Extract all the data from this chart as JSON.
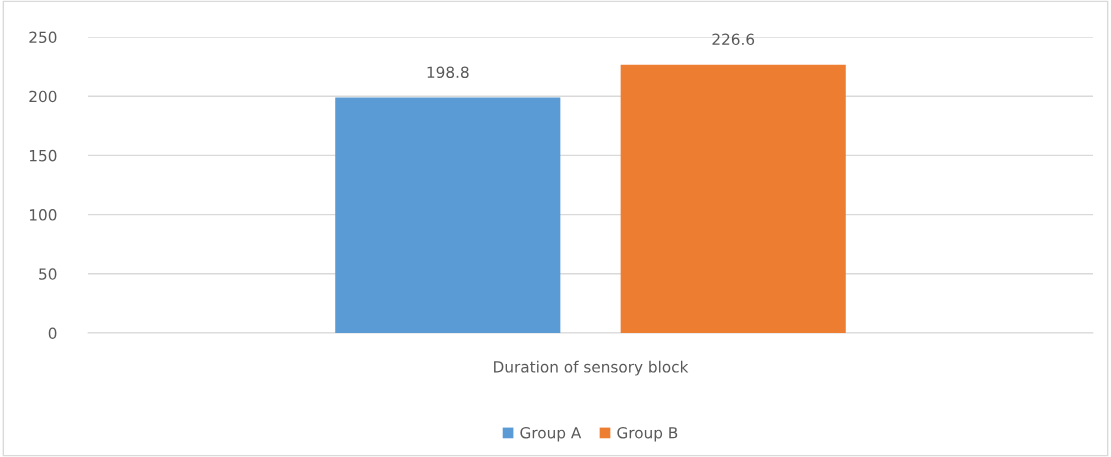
{
  "chart_data": {
    "type": "bar",
    "categories": [
      "Duration of sensory block"
    ],
    "series": [
      {
        "name": "Group A",
        "color": "#5b9bd5",
        "values": [
          198.8
        ]
      },
      {
        "name": "Group B",
        "color": "#ed7d31",
        "values": [
          226.6
        ]
      }
    ],
    "ylim": [
      0,
      250
    ],
    "yticks": [
      0,
      50,
      100,
      150,
      200,
      250
    ],
    "grid": "y",
    "legend": "bottom",
    "data_labels": true
  }
}
